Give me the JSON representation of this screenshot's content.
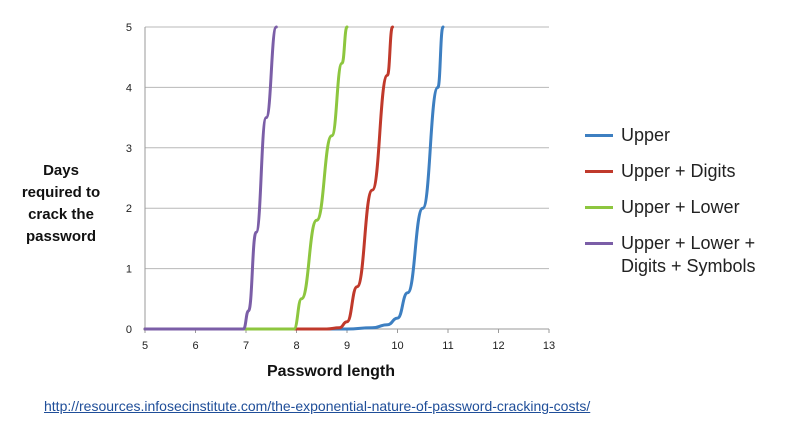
{
  "chart_data": {
    "type": "line",
    "title": "",
    "xlabel": "Password length",
    "ylabel": "Days required to crack the password",
    "xlim": [
      5,
      13
    ],
    "ylim": [
      0,
      5
    ],
    "xticks": [
      5,
      6,
      7,
      8,
      9,
      10,
      11,
      12,
      13
    ],
    "yticks": [
      0,
      1,
      2,
      3,
      4,
      5
    ],
    "grid": "horizontal",
    "legend_position": "right",
    "series": [
      {
        "name": "Upper",
        "color": "#3d7fc1",
        "x": [
          5,
          9,
          9.5,
          9.8,
          10.0,
          10.2,
          10.5,
          10.8,
          10.9
        ],
        "y": [
          0,
          0,
          0.02,
          0.07,
          0.18,
          0.6,
          2.0,
          4.0,
          5.0
        ]
      },
      {
        "name": "Upper + Digits",
        "color": "#c0392b",
        "x": [
          5,
          8.6,
          8.85,
          9.0,
          9.2,
          9.5,
          9.8,
          9.9
        ],
        "y": [
          0,
          0,
          0.02,
          0.12,
          0.7,
          2.3,
          4.2,
          5.0
        ]
      },
      {
        "name": "Upper + Lower",
        "color": "#8dc63f",
        "x": [
          5,
          7.95,
          8.1,
          8.4,
          8.7,
          8.9,
          9.0
        ],
        "y": [
          0,
          0,
          0.5,
          1.8,
          3.2,
          4.4,
          5.0
        ]
      },
      {
        "name": "Upper + Lower + Digits + Symbols",
        "color": "#7b5ea7",
        "x": [
          5,
          6.95,
          7.05,
          7.2,
          7.4,
          7.6
        ],
        "y": [
          0,
          0,
          0.3,
          1.6,
          3.5,
          5.0
        ]
      }
    ]
  },
  "ylabel_lines": [
    "Days",
    "required to",
    "crack the",
    "password"
  ],
  "legend": [
    {
      "label": "Upper",
      "color": "#3d7fc1"
    },
    {
      "label": "Upper + Digits",
      "color": "#c0392b"
    },
    {
      "label": "Upper + Lower",
      "color": "#8dc63f"
    },
    {
      "label": "Upper + Lower + Digits + Symbols",
      "color": "#7b5ea7"
    }
  ],
  "source_url": "http://resources.infosecinstitute.com/the-exponential-nature-of-password-cracking-costs/"
}
